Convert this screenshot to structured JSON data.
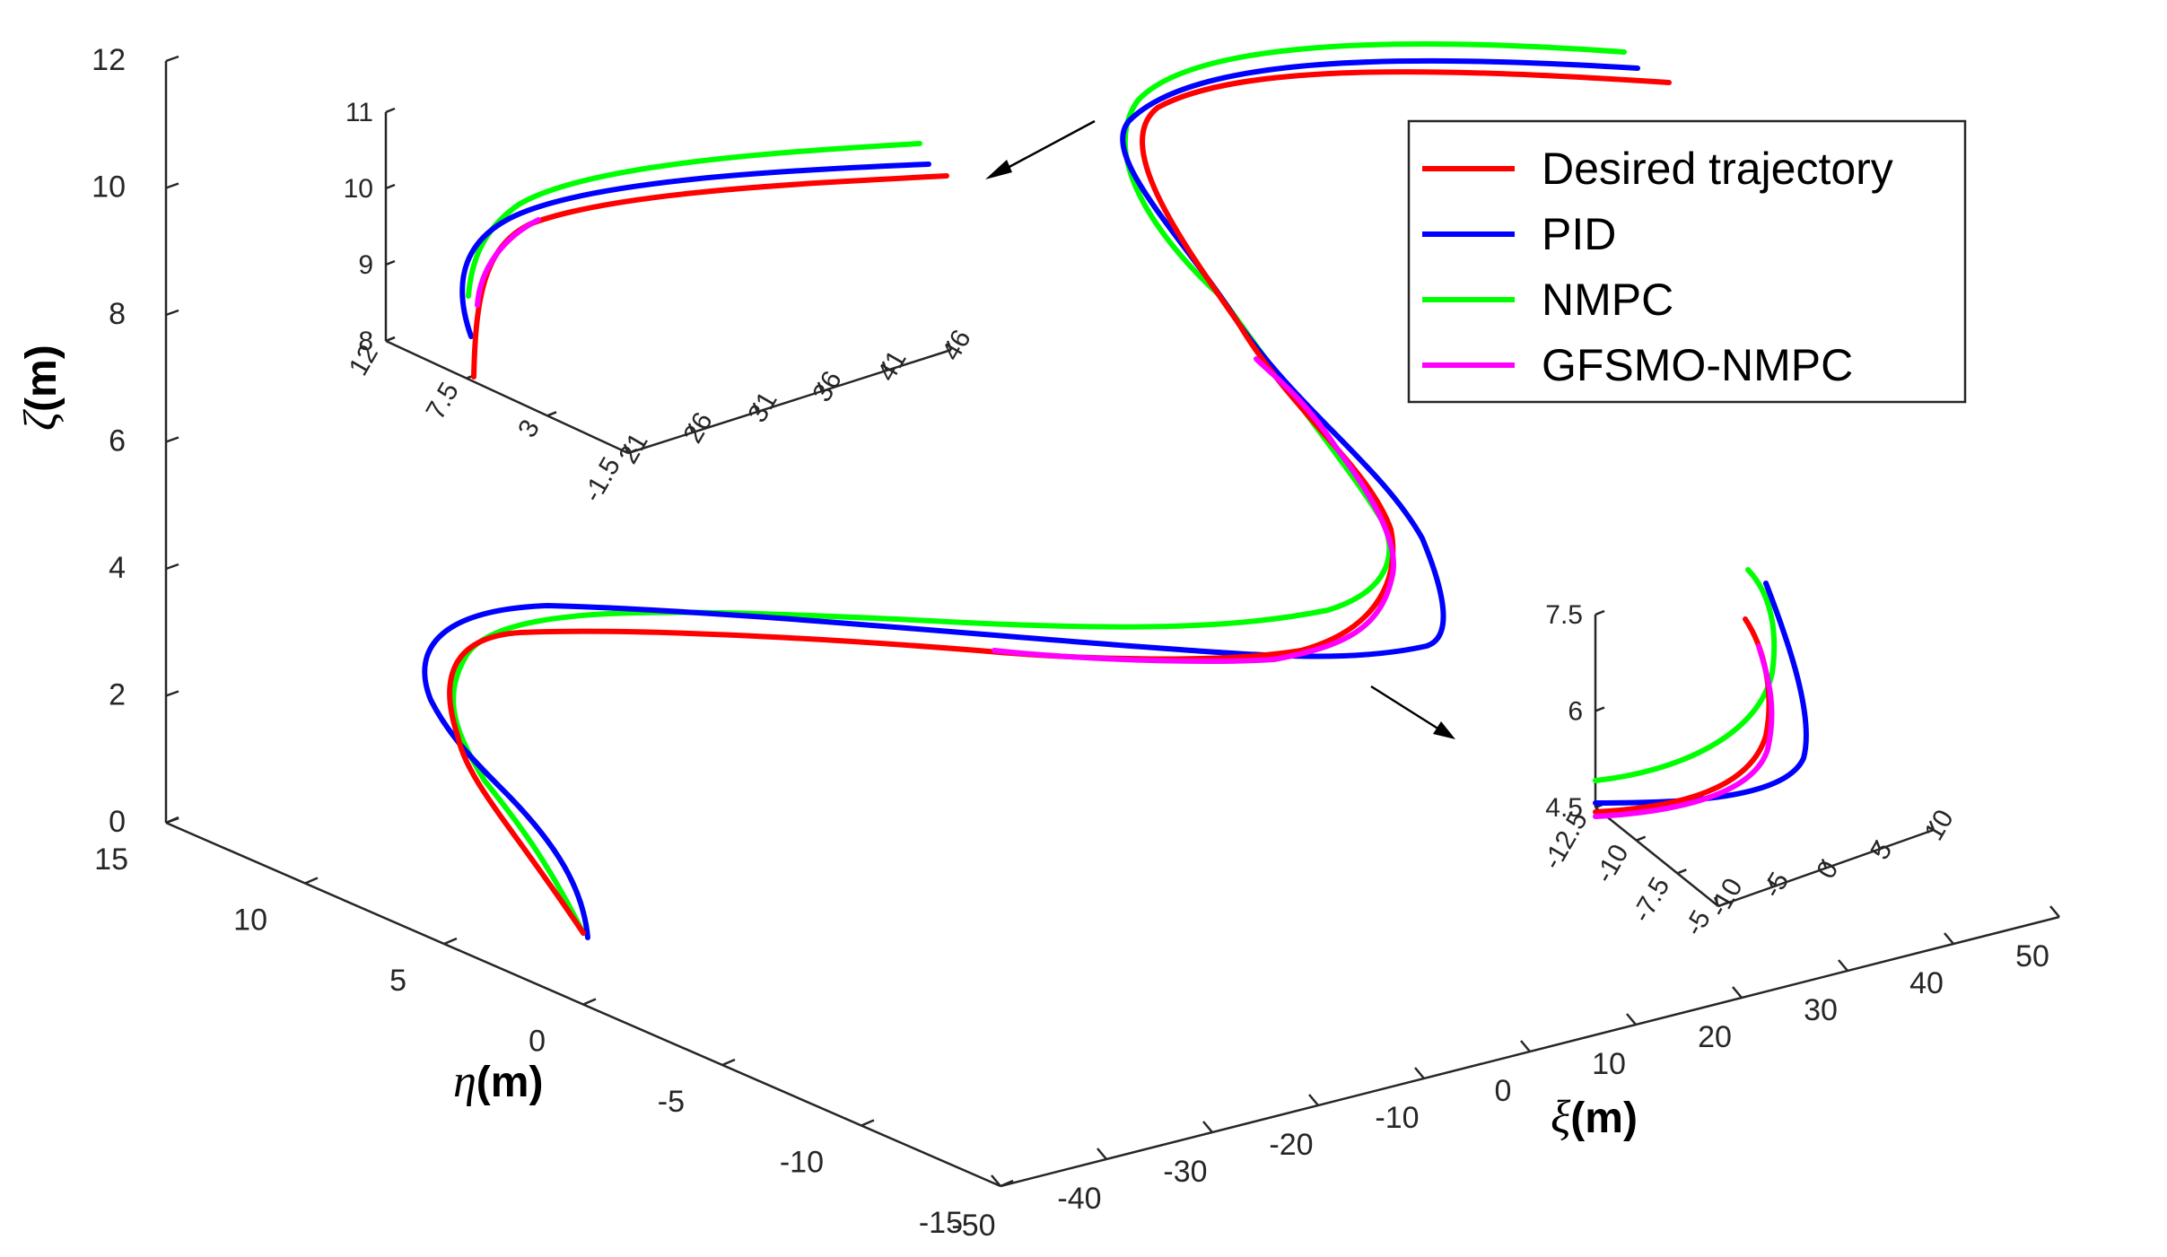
{
  "chart_data": [
    {
      "type": "line",
      "projection": "3d",
      "title": "",
      "xlabel": "ξ(m)",
      "ylabel": "η(m)",
      "zlabel": "ζ(m)",
      "xlim": [
        -50,
        50
      ],
      "ylim": [
        -15,
        15
      ],
      "zlim": [
        0,
        12
      ],
      "xticks": [
        "-50",
        "-40",
        "-30",
        "-20",
        "-10",
        "0",
        "10",
        "20",
        "30",
        "40",
        "50"
      ],
      "yticks": [
        "15",
        "10",
        "5",
        "0",
        "-5",
        "-10",
        "-15"
      ],
      "zticks": [
        "0",
        "2",
        "4",
        "6",
        "8",
        "10",
        "12"
      ],
      "legend": {
        "placement": "top-right",
        "entries": [
          {
            "label": "Desired trajectory",
            "color": "#ff0000"
          },
          {
            "label": "PID",
            "color": "#0000ff"
          },
          {
            "label": "NMPC",
            "color": "#00ff00"
          },
          {
            "label": "GFSMO-NMPC",
            "color": "#ff00ff"
          }
        ]
      },
      "series": [
        {
          "name": "Desired trajectory",
          "color": "#ff0000",
          "description": "S-shaped reference path rising from ζ≈0 to ζ≈12"
        },
        {
          "name": "PID",
          "color": "#0000ff",
          "description": "largest overshoot at the turns"
        },
        {
          "name": "NMPC",
          "color": "#00ff00",
          "description": "offset above the reference"
        },
        {
          "name": "GFSMO-NMPC",
          "color": "#ff00ff",
          "description": "closely follows the reference"
        }
      ]
    },
    {
      "type": "line",
      "projection": "3d",
      "role": "zoom inset (upper turn)",
      "zticks": [
        "8",
        "9",
        "10",
        "11"
      ],
      "yticks": [
        "12",
        "7.5",
        "3",
        "-1.5"
      ],
      "xticks": [
        "21",
        "26",
        "31",
        "36",
        "41",
        "46"
      ]
    },
    {
      "type": "line",
      "projection": "3d",
      "role": "zoom inset (lower turn)",
      "zticks": [
        "4.5",
        "6",
        "7.5"
      ],
      "yticks": [
        "-5",
        "-7.5",
        "-10",
        "-12.5"
      ],
      "xticks": [
        "-10",
        "-5",
        "0",
        "5",
        "10"
      ]
    }
  ]
}
